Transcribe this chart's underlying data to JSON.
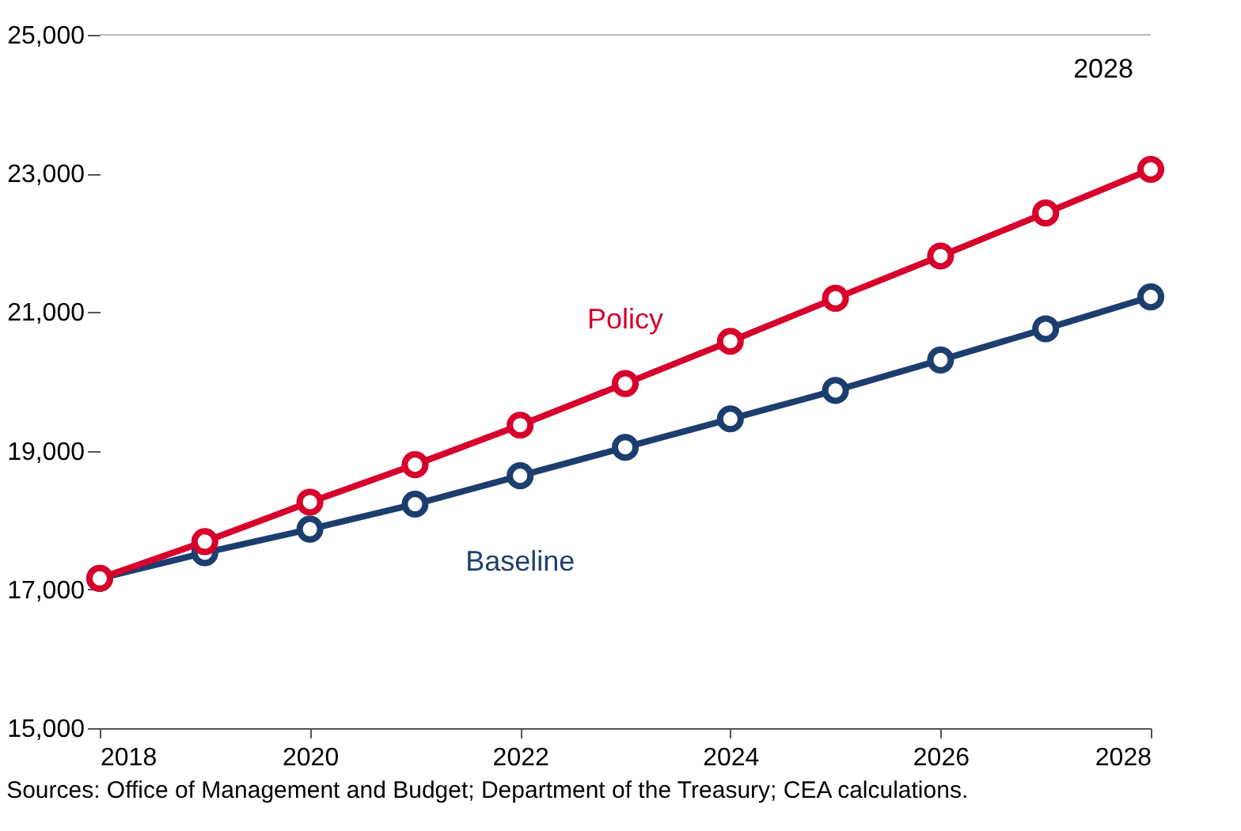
{
  "chart_data": {
    "type": "line",
    "x": [
      2018,
      2019,
      2020,
      2021,
      2022,
      2023,
      2024,
      2025,
      2026,
      2027,
      2028
    ],
    "series": [
      {
        "name": "Policy",
        "color": "#d6002b",
        "values": [
          17160,
          17690,
          18260,
          18800,
          19370,
          19970,
          20580,
          21200,
          21810,
          22430,
          23060
        ]
      },
      {
        "name": "Baseline",
        "color": "#1c3e6e",
        "values": [
          17160,
          17530,
          17870,
          18230,
          18640,
          19050,
          19460,
          19870,
          20310,
          20760,
          21220
        ]
      }
    ],
    "xlim": [
      2018,
      2028
    ],
    "xticks": [
      2018,
      2020,
      2022,
      2024,
      2026,
      2028
    ],
    "ylim": [
      15000,
      25000
    ],
    "yticks": [
      {
        "value": 15000,
        "label": "15,000"
      },
      {
        "value": 17000,
        "label": "17,000"
      },
      {
        "value": 19000,
        "label": "19,000"
      },
      {
        "value": 21000,
        "label": "21,000"
      },
      {
        "value": 23000,
        "label": "23,000"
      },
      {
        "value": 25000,
        "label": "25,000"
      }
    ],
    "marker": "circle",
    "line_style": "solid",
    "legend": false,
    "annotations": [
      "2028",
      "Sources: Office of Management and Budget; Department of the Treasury; CEA calculations."
    ]
  }
}
